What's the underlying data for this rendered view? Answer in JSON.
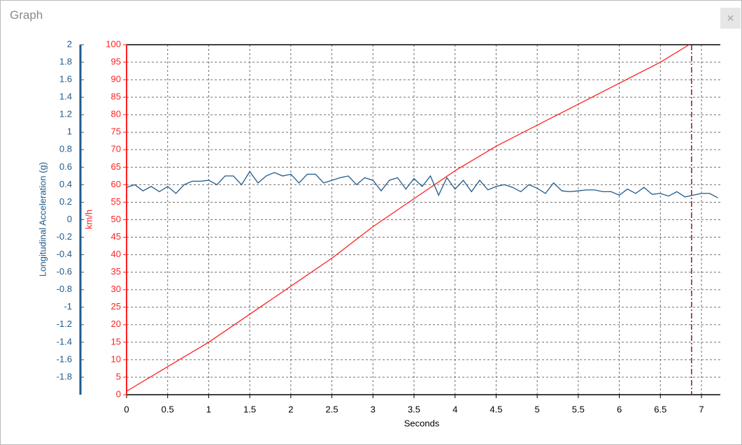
{
  "window_title": "Graph",
  "chart_data": {
    "type": "line",
    "xlabel": "Seconds",
    "ylabel": "km/h",
    "y2label": "Longitudinal Acceleration (g)",
    "xlim": [
      0,
      7.23
    ],
    "xticks": [
      0,
      0.5,
      1,
      1.5,
      2,
      2.5,
      3,
      3.5,
      4,
      4.5,
      5,
      5.5,
      6,
      6.5,
      7
    ],
    "ylim": [
      0,
      100
    ],
    "yticks": [
      0,
      5,
      10,
      15,
      20,
      25,
      30,
      35,
      40,
      45,
      50,
      55,
      60,
      65,
      70,
      75,
      80,
      85,
      90,
      95,
      100
    ],
    "y2lim": [
      -2,
      2
    ],
    "y2ticks": [
      -1.8,
      -1.6,
      -1.4,
      -1.2,
      -1,
      -0.8,
      -0.6,
      -0.4,
      -0.2,
      0,
      0.2,
      0.4,
      0.6,
      0.8,
      1,
      1.2,
      1.4,
      1.6,
      1.8,
      2
    ],
    "grid": true,
    "marker_x": 6.88,
    "series": [
      {
        "color": "#ff2020",
        "axis": "y",
        "x": [
          0,
          0.5,
          1,
          1.5,
          2,
          2.5,
          3,
          3.5,
          4,
          4.5,
          5,
          5.5,
          6,
          6.5,
          6.85
        ],
        "values": [
          1,
          8,
          15,
          23,
          31,
          39,
          48,
          56,
          64,
          71,
          77,
          83,
          89,
          95,
          100
        ]
      },
      {
        "color": "#1f5a8c",
        "axis": "y2",
        "x": [
          0,
          0.1,
          0.2,
          0.3,
          0.4,
          0.5,
          0.6,
          0.7,
          0.8,
          0.9,
          1,
          1.1,
          1.2,
          1.3,
          1.4,
          1.5,
          1.6,
          1.7,
          1.8,
          1.9,
          2,
          2.1,
          2.2,
          2.3,
          2.4,
          2.5,
          2.6,
          2.7,
          2.8,
          2.9,
          3,
          3.1,
          3.2,
          3.3,
          3.4,
          3.5,
          3.6,
          3.7,
          3.8,
          3.9,
          4,
          4.1,
          4.2,
          4.3,
          4.4,
          4.5,
          4.6,
          4.7,
          4.8,
          4.9,
          5,
          5.1,
          5.2,
          5.3,
          5.4,
          5.5,
          5.6,
          5.7,
          5.8,
          5.9,
          6,
          6.1,
          6.2,
          6.3,
          6.4,
          6.5,
          6.6,
          6.7,
          6.8,
          6.9,
          7,
          7.1,
          7.2
        ],
        "values": [
          0.37,
          0.4,
          0.33,
          0.38,
          0.32,
          0.38,
          0.3,
          0.4,
          0.44,
          0.44,
          0.45,
          0.4,
          0.5,
          0.5,
          0.4,
          0.55,
          0.42,
          0.5,
          0.54,
          0.5,
          0.52,
          0.42,
          0.52,
          0.52,
          0.42,
          0.45,
          0.48,
          0.5,
          0.4,
          0.48,
          0.45,
          0.33,
          0.45,
          0.48,
          0.35,
          0.47,
          0.38,
          0.5,
          0.28,
          0.48,
          0.35,
          0.45,
          0.32,
          0.45,
          0.34,
          0.38,
          0.4,
          0.37,
          0.32,
          0.4,
          0.36,
          0.3,
          0.42,
          0.33,
          0.32,
          0.33,
          0.34,
          0.34,
          0.32,
          0.32,
          0.28,
          0.35,
          0.3,
          0.37,
          0.29,
          0.3,
          0.27,
          0.32,
          0.26,
          0.28,
          0.3,
          0.3,
          0.25
        ]
      }
    ]
  }
}
